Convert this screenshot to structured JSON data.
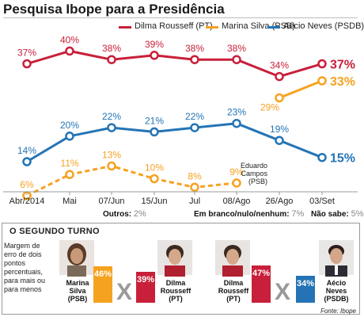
{
  "title": "Pesquisa Ibope para a Presidência",
  "chart_data": {
    "type": "line",
    "categories": [
      "Abr/2014",
      "Mai",
      "07/Jun",
      "15/Jun",
      "Jul",
      "08/Ago",
      "26/Ago",
      "03/Set"
    ],
    "series": [
      {
        "name": "Dilma Rousseff (PT)",
        "color": "#c8203a",
        "dashed": false,
        "values": [
          37,
          40,
          38,
          39,
          38,
          38,
          34,
          37
        ],
        "labels": [
          "37%",
          "40%",
          "38%",
          "39%",
          "38%",
          "38%",
          "34%",
          "37%"
        ]
      },
      {
        "name": "Marina Silva (PSB)",
        "color": "#f6a221",
        "dashed": false,
        "values": [
          null,
          null,
          null,
          null,
          null,
          null,
          29,
          33
        ],
        "labels": [
          "",
          "",
          "",
          "",
          "",
          "",
          "29%",
          "33%"
        ]
      },
      {
        "name": "Aécio Neves (PSDB)",
        "color": "#2474b5",
        "dashed": false,
        "values": [
          14,
          20,
          22,
          21,
          22,
          23,
          19,
          15
        ],
        "labels": [
          "14%",
          "20%",
          "22%",
          "21%",
          "22%",
          "23%",
          "19%",
          "15%"
        ]
      },
      {
        "name": "Eduardo Campos (PSB)",
        "color": "#f6a221",
        "dashed": true,
        "values": [
          6,
          11,
          13,
          10,
          8,
          9,
          null,
          null
        ],
        "labels": [
          "6%",
          "11%",
          "13%",
          "10%",
          "8%",
          "9%",
          "",
          ""
        ]
      }
    ],
    "annotation": [
      "Eduardo",
      "Campos",
      "(PSB)"
    ],
    "grid": false,
    "legend": "top"
  },
  "others": {
    "outros_label": "Outros:",
    "outros_value": "2%",
    "branco_label": "Em branco/nulo/nenhum:",
    "branco_value": "7%",
    "naosabe_label": "Não sabe:",
    "naosabe_value": "5%"
  },
  "segundo_turno": {
    "title": "O SEGUNDO TURNO",
    "margin_note": "Margem de erro de dois pontos percentuais, para mais ou para menos",
    "vs_symbol": "X",
    "matchups": [
      {
        "a": {
          "name1": "Marina",
          "name2": "Silva",
          "party": "(PSB)",
          "value": 46,
          "label": "46%",
          "color": "#f6a221"
        },
        "b": {
          "name1": "Dilma",
          "name2": "Rousseff",
          "party": "(PT)",
          "value": 39,
          "label": "39%",
          "color": "#c8203a"
        }
      },
      {
        "a": {
          "name1": "Dilma",
          "name2": "Rousseff",
          "party": "(PT)",
          "value": 47,
          "label": "47%",
          "color": "#c8203a"
        },
        "b": {
          "name1": "Aécio",
          "name2": "Neves",
          "party": "(PSDB)",
          "value": 34,
          "label": "34%",
          "color": "#2474b5"
        }
      }
    ]
  },
  "source": "Fonte: Ibope"
}
